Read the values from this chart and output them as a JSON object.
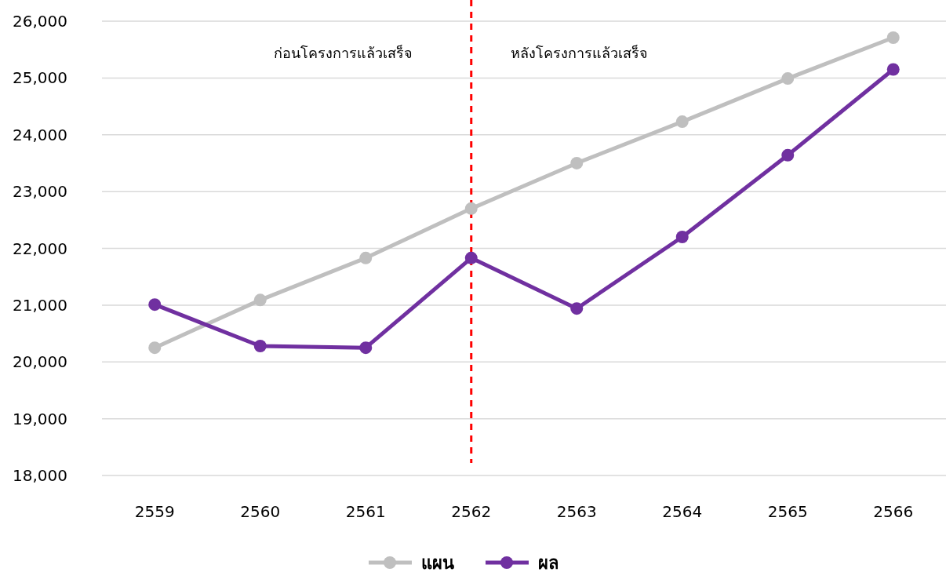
{
  "chart_data": {
    "type": "line",
    "categories": [
      "2559",
      "2560",
      "2561",
      "2562",
      "2563",
      "2564",
      "2565",
      "2566"
    ],
    "series": [
      {
        "name": "แผน",
        "color": "#bfbfbf",
        "values": [
          20250,
          21090,
          21830,
          22700,
          23500,
          24230,
          24990,
          25710
        ]
      },
      {
        "name": "ผล",
        "color": "#7030a0",
        "values": [
          21010,
          20280,
          20250,
          21830,
          20940,
          22200,
          23640,
          25150
        ]
      }
    ],
    "ylim": [
      18000,
      26000
    ],
    "yticks": [
      {
        "value": 18000,
        "label": "18,000"
      },
      {
        "value": 19000,
        "label": "19,000"
      },
      {
        "value": 20000,
        "label": "20,000"
      },
      {
        "value": 21000,
        "label": "21,000"
      },
      {
        "value": 22000,
        "label": "22,000"
      },
      {
        "value": 23000,
        "label": "23,000"
      },
      {
        "value": 24000,
        "label": "24,000"
      },
      {
        "value": 25000,
        "label": "25,000"
      },
      {
        "value": 26000,
        "label": "26,000"
      }
    ],
    "ref_lines": [
      {
        "axis": "x",
        "value": "2562",
        "color": "#ff0000",
        "line_style": "dashed"
      }
    ],
    "annotations": [
      "ก่อนโครงการแล้วเสร็จ",
      "หลังโครงการแล้วเสร็จ"
    ],
    "grid": "y",
    "legend": "bottom",
    "marker": "circle",
    "line_style": "solid"
  }
}
